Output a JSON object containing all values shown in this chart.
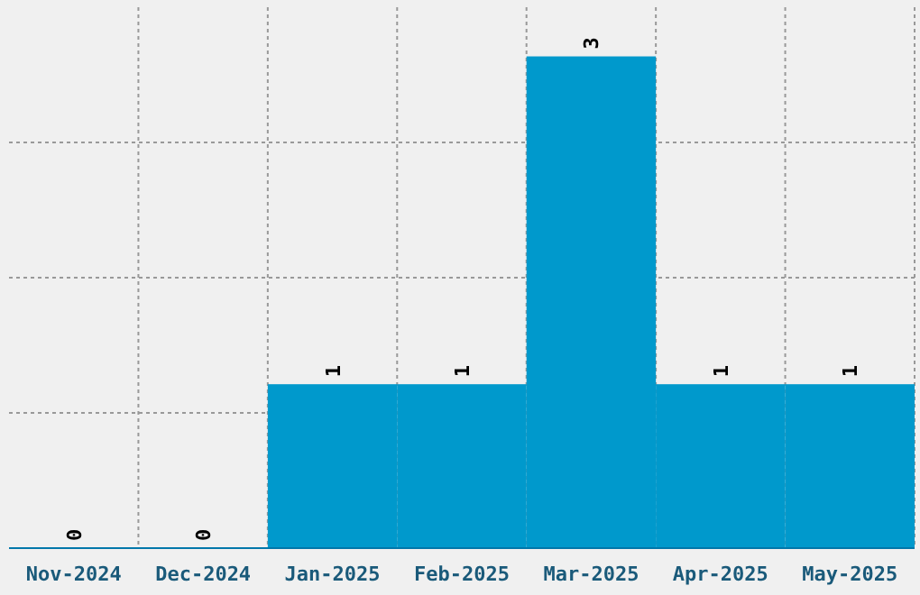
{
  "chart_data": {
    "type": "bar",
    "categories": [
      "Nov-2024",
      "Dec-2024",
      "Jan-2025",
      "Feb-2025",
      "Mar-2025",
      "Apr-2025",
      "May-2025"
    ],
    "values": [
      0,
      0,
      1,
      1,
      3,
      1,
      1
    ],
    "color": "#0099cc",
    "ylim": [
      0,
      3.3
    ],
    "yticks": [
      {
        "value": 0.825,
        "label": null
      },
      {
        "value": 1.65,
        "label": null
      },
      {
        "value": 2.475,
        "label": null
      }
    ],
    "tick_labels": "x",
    "grid": true,
    "data_labels": true
  }
}
